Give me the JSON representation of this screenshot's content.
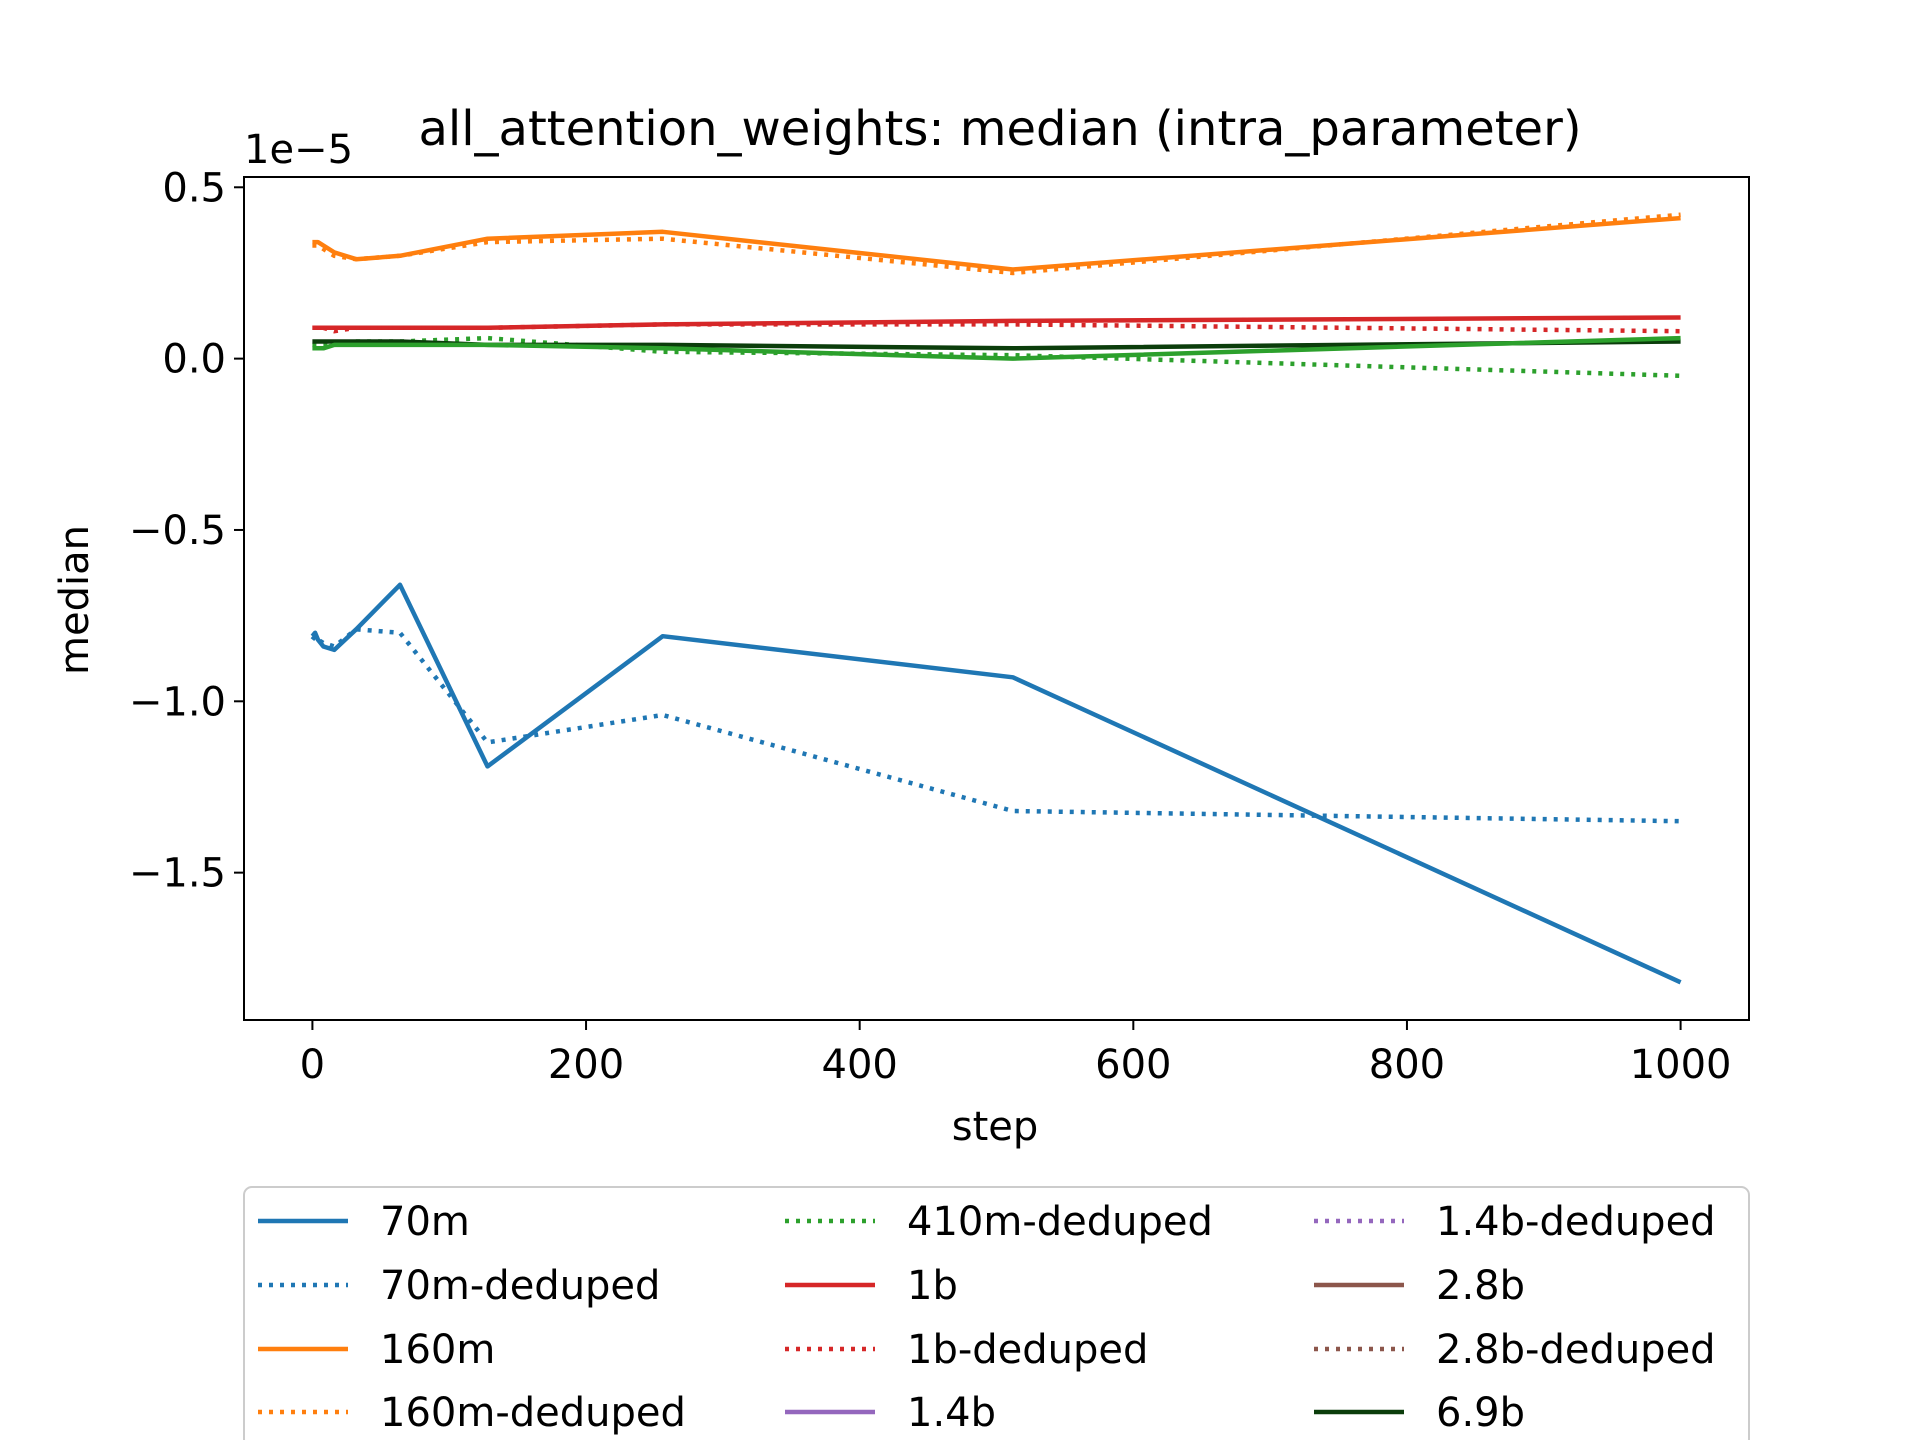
{
  "chart_data": {
    "type": "line",
    "title": "all_attention_weights: median (intra_parameter)",
    "xlabel": "step",
    "ylabel": "median",
    "y_offset_label": "1e−5",
    "xlim": [
      -50,
      1050
    ],
    "ylim": [
      -1.93,
      0.53
    ],
    "x_ticks": [
      0,
      200,
      400,
      600,
      800,
      1000
    ],
    "x_tick_labels": [
      "0",
      "200",
      "400",
      "600",
      "800",
      "1000"
    ],
    "y_ticks": [
      0.5,
      0.0,
      -0.5,
      -1.0,
      -1.5
    ],
    "y_tick_labels": [
      "0.5",
      "0.0",
      "−0.5",
      "−1.0",
      "−1.5"
    ],
    "grid": false,
    "legend_position": "below",
    "series": [
      {
        "name": "70m",
        "color": "#1f77b4",
        "dash": "solid",
        "x": [
          0,
          2,
          4,
          8,
          16,
          32,
          64,
          128,
          256,
          512,
          1000
        ],
        "y": [
          -0.81,
          -0.8,
          -0.82,
          -0.84,
          -0.85,
          -0.79,
          -0.66,
          -1.19,
          -0.81,
          -0.93,
          -1.82
        ]
      },
      {
        "name": "70m-deduped",
        "color": "#1f77b4",
        "dash": "dotted",
        "x": [
          0,
          2,
          4,
          8,
          16,
          32,
          64,
          128,
          256,
          512,
          1000
        ],
        "y": [
          -0.82,
          -0.81,
          -0.82,
          -0.83,
          -0.84,
          -0.79,
          -0.8,
          -1.12,
          -1.04,
          -1.32,
          -1.35
        ]
      },
      {
        "name": "160m",
        "color": "#ff7f0e",
        "dash": "solid",
        "x": [
          0,
          2,
          4,
          8,
          16,
          32,
          64,
          128,
          256,
          512,
          1000
        ],
        "y": [
          0.34,
          0.34,
          0.34,
          0.33,
          0.31,
          0.29,
          0.3,
          0.35,
          0.37,
          0.26,
          0.41
        ]
      },
      {
        "name": "160m-deduped",
        "color": "#ff7f0e",
        "dash": "dotted",
        "x": [
          0,
          2,
          4,
          8,
          16,
          32,
          64,
          128,
          256,
          512,
          1000
        ],
        "y": [
          0.33,
          0.33,
          0.33,
          0.32,
          0.3,
          0.29,
          0.3,
          0.34,
          0.35,
          0.25,
          0.42
        ]
      },
      {
        "name": "410m-deduped",
        "color": "#2ca02c",
        "dash": "dotted",
        "x": [
          0,
          2,
          4,
          8,
          16,
          32,
          64,
          128,
          256,
          512,
          1000
        ],
        "y": [
          0.04,
          0.04,
          0.04,
          0.04,
          0.04,
          0.05,
          0.05,
          0.06,
          0.02,
          0.01,
          -0.05
        ]
      },
      {
        "name": "1b",
        "color": "#d62728",
        "dash": "solid",
        "x": [
          0,
          2,
          4,
          8,
          16,
          32,
          64,
          128,
          256,
          512,
          1000
        ],
        "y": [
          0.09,
          0.09,
          0.09,
          0.09,
          0.09,
          0.09,
          0.09,
          0.09,
          0.1,
          0.11,
          0.12
        ]
      },
      {
        "name": "1b-deduped",
        "color": "#d62728",
        "dash": "dotted",
        "x": [
          0,
          2,
          4,
          8,
          16,
          32,
          64,
          128,
          256,
          512,
          1000
        ],
        "y": [
          0.09,
          0.09,
          0.09,
          0.09,
          0.08,
          0.09,
          0.09,
          0.09,
          0.1,
          0.1,
          0.08
        ]
      },
      {
        "name": "1.4b",
        "color": "#9467bd",
        "dash": "solid",
        "x": [],
        "y": []
      },
      {
        "name": "1.4b-deduped",
        "color": "#9467bd",
        "dash": "dotted",
        "x": [],
        "y": []
      },
      {
        "name": "2.8b",
        "color": "#8c564b",
        "dash": "solid",
        "x": [],
        "y": []
      },
      {
        "name": "2.8b-deduped",
        "color": "#8c564b",
        "dash": "dotted",
        "x": [],
        "y": []
      },
      {
        "name": "6.9b",
        "color": "#0b3d0b",
        "dash": "solid",
        "x": [
          0,
          2,
          4,
          8,
          16,
          32,
          64,
          128,
          256,
          512,
          1000
        ],
        "y": [
          0.05,
          0.05,
          0.05,
          0.05,
          0.05,
          0.05,
          0.05,
          0.04,
          0.04,
          0.03,
          0.05
        ]
      },
      {
        "name": "",
        "color": "#2ca02c",
        "dash": "solid",
        "x": [
          0,
          2,
          4,
          8,
          16,
          32,
          64,
          128,
          256,
          512,
          1000
        ],
        "y": [
          0.03,
          0.03,
          0.03,
          0.03,
          0.04,
          0.04,
          0.04,
          0.04,
          0.03,
          0.0,
          0.06
        ]
      }
    ]
  }
}
